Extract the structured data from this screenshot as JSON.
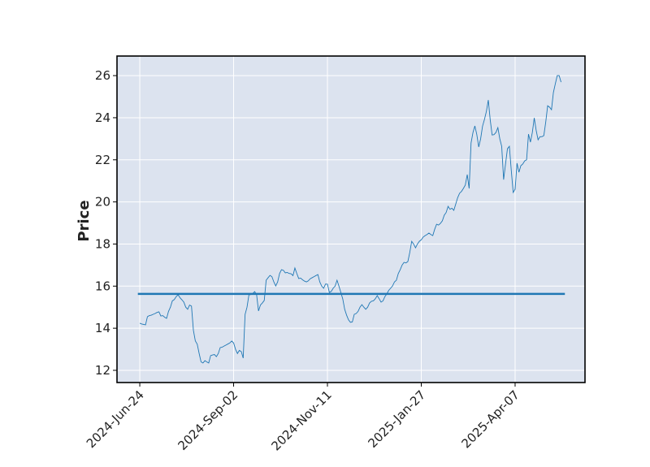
{
  "chart_data": {
    "type": "line",
    "ylabel": "Price",
    "categories": [
      "2024-Jun-24",
      null,
      null,
      null,
      null,
      null,
      null,
      null,
      null,
      null,
      null,
      null,
      null,
      null,
      null,
      null,
      null,
      null,
      null,
      null,
      null,
      null,
      null,
      null,
      null,
      null,
      null,
      null,
      null,
      null,
      null,
      null,
      null,
      null,
      null,
      null,
      null,
      null,
      null,
      null,
      null,
      null,
      null,
      null,
      null,
      null,
      null,
      null,
      null,
      "2024-Sep-02",
      null,
      null,
      null,
      null,
      null,
      null,
      null,
      null,
      null,
      null,
      null,
      null,
      null,
      null,
      null,
      null,
      null,
      null,
      null,
      null,
      null,
      null,
      null,
      null,
      null,
      null,
      null,
      null,
      null,
      null,
      null,
      null,
      null,
      null,
      null,
      null,
      null,
      null,
      null,
      null,
      null,
      null,
      null,
      null,
      null,
      null,
      null,
      null,
      "2024-Nov-11",
      null,
      null,
      null,
      null,
      null,
      null,
      null,
      null,
      null,
      null,
      null,
      null,
      null,
      null,
      null,
      null,
      null,
      null,
      null,
      null,
      null,
      null,
      null,
      null,
      null,
      null,
      null,
      null,
      null,
      null,
      null,
      null,
      null,
      null,
      null,
      null,
      null,
      null,
      null,
      null,
      null,
      null,
      null,
      null,
      null,
      null,
      null,
      null,
      "2025-Jan-27",
      null,
      null,
      null,
      null,
      null,
      null,
      null,
      null,
      null,
      null,
      null,
      null,
      null,
      null,
      null,
      null,
      null,
      null,
      null,
      null,
      null,
      null,
      null,
      null,
      null,
      null,
      null,
      null,
      null,
      null,
      null,
      null,
      null,
      null,
      null,
      null,
      null,
      null,
      null,
      null,
      null,
      null,
      null,
      null,
      null,
      null,
      null,
      null,
      "2025-Apr-07",
      null,
      null,
      null,
      null,
      null,
      null,
      null,
      null,
      null,
      null,
      null,
      null,
      null,
      null,
      null,
      null,
      null,
      null,
      null,
      null,
      null,
      null,
      null,
      null
    ],
    "series": [
      {
        "color": "#1f77b4",
        "values": [
          14.24,
          14.2,
          14.18,
          14.16,
          14.55,
          14.6,
          14.62,
          14.66,
          14.7,
          14.75,
          14.78,
          14.58,
          14.6,
          14.52,
          14.47,
          14.8,
          15.0,
          15.3,
          15.36,
          15.5,
          15.59,
          15.45,
          15.35,
          15.24,
          15.0,
          14.9,
          15.1,
          15.05,
          13.9,
          13.4,
          13.24,
          12.8,
          12.4,
          12.35,
          12.46,
          12.4,
          12.35,
          12.7,
          12.73,
          12.75,
          12.65,
          12.8,
          13.08,
          13.1,
          13.15,
          13.2,
          13.25,
          13.3,
          13.39,
          13.3,
          13.0,
          12.8,
          12.95,
          12.89,
          12.58,
          14.66,
          15.0,
          15.59,
          15.6,
          15.65,
          15.74,
          15.6,
          14.82,
          15.1,
          15.2,
          15.32,
          16.28,
          16.4,
          16.51,
          16.45,
          16.2,
          16.01,
          16.2,
          16.6,
          16.78,
          16.75,
          16.63,
          16.65,
          16.6,
          16.59,
          16.5,
          16.86,
          16.6,
          16.36,
          16.38,
          16.3,
          16.24,
          16.2,
          16.25,
          16.35,
          16.4,
          16.45,
          16.5,
          16.55,
          16.2,
          16.0,
          15.9,
          16.1,
          16.09,
          15.7,
          15.75,
          15.9,
          16.0,
          16.28,
          16.0,
          15.7,
          15.39,
          14.9,
          14.62,
          14.4,
          14.28,
          14.3,
          14.66,
          14.7,
          14.8,
          15.0,
          15.12,
          15.0,
          14.9,
          15.0,
          15.2,
          15.28,
          15.3,
          15.4,
          15.55,
          15.4,
          15.24,
          15.3,
          15.5,
          15.63,
          15.8,
          15.9,
          16.01,
          16.2,
          16.28,
          16.6,
          16.78,
          17.0,
          17.13,
          17.1,
          17.17,
          17.6,
          18.13,
          18.0,
          17.82,
          18.0,
          18.13,
          18.2,
          18.33,
          18.4,
          18.45,
          18.52,
          18.45,
          18.4,
          18.7,
          18.94,
          18.9,
          18.98,
          19.1,
          19.37,
          19.5,
          19.79,
          19.65,
          19.7,
          19.6,
          19.9,
          20.2,
          20.41,
          20.5,
          20.64,
          20.8,
          21.3,
          20.64,
          22.8,
          23.3,
          23.61,
          23.2,
          22.61,
          23.0,
          23.6,
          23.92,
          24.3,
          24.84,
          23.9,
          23.18,
          23.2,
          23.3,
          23.53,
          23.0,
          22.64,
          21.06,
          21.8,
          22.53,
          22.64,
          21.5,
          20.45,
          20.6,
          21.84,
          21.41,
          21.72,
          21.8,
          21.95,
          22.0,
          23.22,
          22.84,
          23.3,
          23.99,
          23.4,
          22.95,
          23.1,
          23.1,
          23.15,
          23.8,
          24.57,
          24.5,
          24.38,
          25.2,
          25.61,
          26.0,
          26.0,
          25.69
        ]
      }
    ],
    "hlines": [
      {
        "value": 15.63,
        "color": "#1f77b4"
      }
    ],
    "xlim": [
      -11.9,
      232.5
    ],
    "ylim": [
      11.42,
      26.93
    ],
    "yticks": [
      12,
      14,
      16,
      18,
      20,
      22,
      24,
      26
    ],
    "grid": true,
    "background": "#dce3ef"
  }
}
